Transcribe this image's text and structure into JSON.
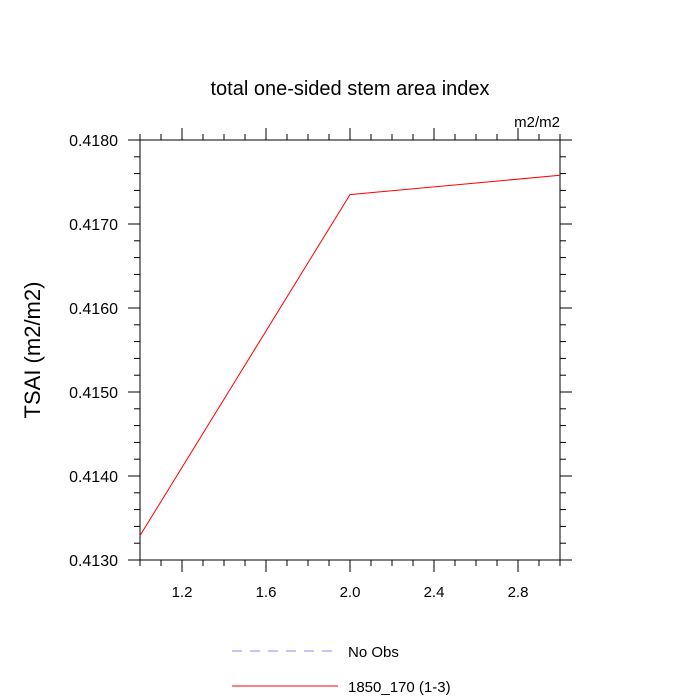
{
  "chart_data": {
    "type": "line",
    "title": "total one-sided stem area index",
    "units_label": "m2/m2",
    "ylabel": "TSAI  (m2/m2)",
    "xlabel": "",
    "xlim": [
      1.0,
      3.0
    ],
    "ylim": [
      0.413,
      0.418
    ],
    "xticks": [
      1.2,
      1.6,
      2.0,
      2.4,
      2.8
    ],
    "xtick_labels": [
      "1.2",
      "1.6",
      "2.0",
      "2.4",
      "2.8"
    ],
    "yticks": [
      0.413,
      0.414,
      0.415,
      0.416,
      0.417,
      0.418
    ],
    "ytick_labels": [
      "0.4130",
      "0.4140",
      "0.4150",
      "0.4160",
      "0.4170",
      "0.4180"
    ],
    "grid": false,
    "legend_position": "bottom-center",
    "series": [
      {
        "name": "No Obs",
        "color": "#8a8af0",
        "dash": "dashed",
        "x": [],
        "y": []
      },
      {
        "name": "1850_170 (1-3)",
        "color": "#ff0000",
        "dash": "solid",
        "x": [
          1.0,
          2.0,
          3.0
        ],
        "y": [
          0.41329,
          0.41735,
          0.41758
        ]
      }
    ]
  }
}
